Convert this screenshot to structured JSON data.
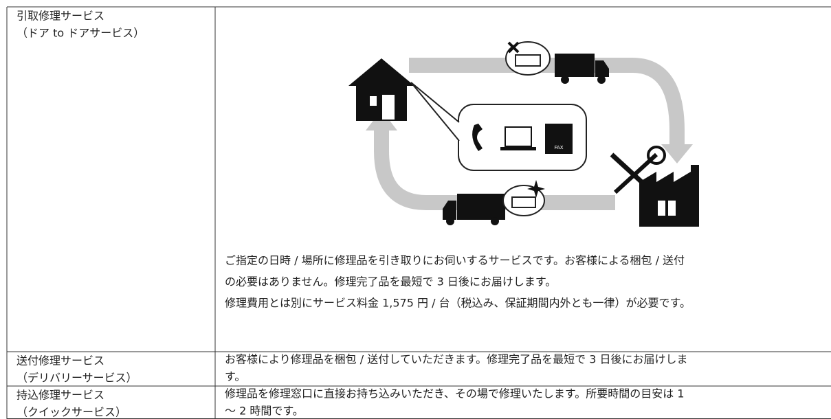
{
  "table": {
    "rows": [
      {
        "service": [
          "引取修理サービス",
          "（ドア to ドアサービス）"
        ],
        "description": [
          "ご指定の日時 / 場所に修理品を引き取りにお伺いするサービスです。お客様による梱包 / 送付",
          "の必要はありません。修理完了品を最短で 3 日後にお届けします。",
          "修理費用とは別にサービス料金 1,575 円 / 台（税込み、保証期間内外とも一律）が必要です。"
        ]
      },
      {
        "service": [
          "送付修理サービス",
          "（デリバリーサービス）"
        ],
        "description": [
          "お客様により修理品を梱包 / 送付していただきます。修理完了品を最短で 3 日後にお届けしま",
          "す。"
        ]
      },
      {
        "service": [
          "持込修理サービス",
          "（クイックサービス）"
        ],
        "description": [
          "修理品を修理窓口に直接お持ち込みいただき、その場で修理いたします。所要時間の目安は 1",
          "～ 2 時間です。"
        ]
      }
    ]
  },
  "illustration": {
    "fax_label": "FAX"
  }
}
